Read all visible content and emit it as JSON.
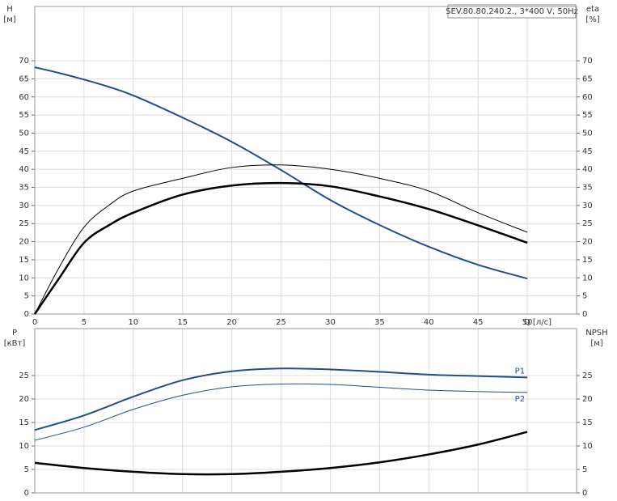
{
  "chart_data": [
    {
      "type": "line",
      "title": "SEV.80.80.240.2., 3*400 V, 50Hz",
      "xlabel": "Q [л/с]",
      "ylabel": "H",
      "yunit": "[м]",
      "y2label": "eta",
      "y2unit": "[%]",
      "x": [
        0,
        2.5,
        5,
        7.5,
        10,
        15,
        20,
        25,
        30,
        35,
        40,
        45,
        50
      ],
      "series": [
        {
          "color": "#1f4e8c",
          "line_width": 2,
          "values": [
            68.2,
            66.6,
            64.8,
            62.8,
            60.4,
            54.3,
            47.6,
            39.8,
            31.5,
            24.6,
            18.6,
            13.6,
            9.8
          ]
        },
        {
          "color": "#000000",
          "line_width": 1,
          "axis": "y2",
          "values": [
            0,
            13,
            24,
            30,
            34,
            37.5,
            40.5,
            41.2,
            40,
            37.5,
            34,
            28,
            22.6
          ]
        },
        {
          "color": "#000000",
          "line_width": 2.5,
          "axis": "y2",
          "values": [
            0,
            10,
            19.7,
            24.5,
            28,
            33,
            35.5,
            36.2,
            35.3,
            32.5,
            29,
            24.5,
            19.7
          ]
        }
      ],
      "xlim": [
        0,
        55
      ],
      "xticks": [
        0,
        5,
        10,
        15,
        20,
        25,
        30,
        35,
        40,
        45,
        50
      ],
      "ylim": [
        0,
        85
      ],
      "yticks": [
        0,
        5,
        10,
        15,
        20,
        25,
        30,
        35,
        40,
        45,
        50,
        55,
        60,
        65,
        70
      ],
      "y2lim": [
        0,
        85
      ],
      "y2ticks": [
        0,
        5,
        10,
        15,
        20,
        25,
        30,
        35,
        40,
        45,
        50,
        55,
        60,
        65,
        70
      ],
      "grid": true
    },
    {
      "type": "line",
      "ylabel": "P",
      "yunit": "[кВт]",
      "y2label": "NPSH",
      "y2unit": "[м]",
      "x": [
        0,
        5,
        10,
        15,
        20,
        25,
        30,
        35,
        40,
        45,
        50
      ],
      "series": [
        {
          "name": "P1",
          "color": "#1f4e8c",
          "line_width": 2,
          "values": [
            13.4,
            16.5,
            20.5,
            24,
            25.9,
            26.5,
            26.3,
            25.8,
            25.2,
            24.9,
            24.6
          ]
        },
        {
          "name": "P2",
          "color": "#1f4e8c",
          "line_width": 1,
          "values": [
            11.2,
            14,
            17.8,
            20.8,
            22.6,
            23.2,
            23.1,
            22.5,
            21.9,
            21.6,
            21.4
          ]
        },
        {
          "color": "#000000",
          "line_width": 2.5,
          "axis": "y2",
          "values": [
            6.4,
            5.3,
            4.5,
            4.0,
            4.0,
            4.5,
            5.3,
            6.5,
            8.2,
            10.3,
            13.0
          ]
        }
      ],
      "xlim": [
        0,
        55
      ],
      "ylim": [
        0,
        35
      ],
      "yticks": [
        0,
        5,
        10,
        15,
        20,
        25
      ],
      "y2lim": [
        0,
        35
      ],
      "y2ticks": [
        0,
        5,
        10,
        15,
        20,
        25
      ],
      "grid": true
    }
  ]
}
